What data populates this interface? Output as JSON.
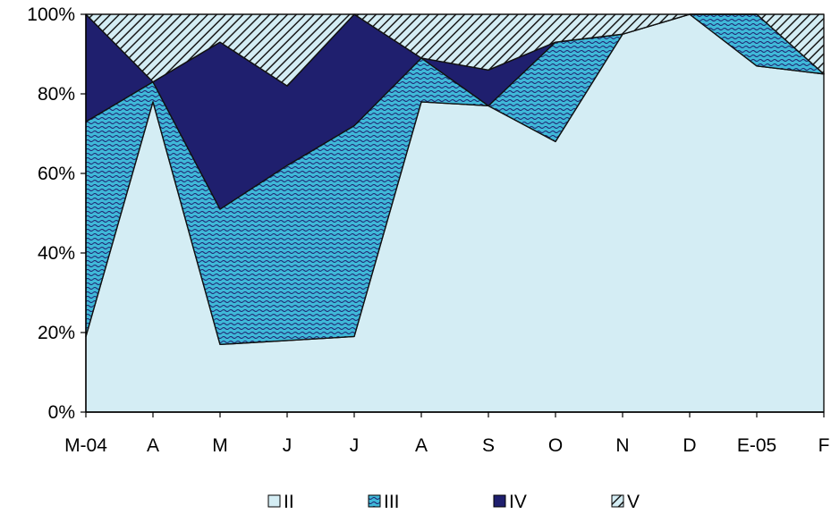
{
  "chart_data": {
    "type": "area",
    "stacked": "percent",
    "categories": [
      "M-04",
      "A",
      "M",
      "J",
      "J",
      "A",
      "S",
      "O",
      "N",
      "D",
      "E-05",
      "F"
    ],
    "series": [
      {
        "name": "II",
        "values": [
          19,
          78,
          17,
          18,
          19,
          78,
          77,
          68,
          95,
          100,
          87,
          85
        ],
        "fill": "#d4edf4",
        "pattern": "solid"
      },
      {
        "name": "III",
        "values": [
          54,
          5,
          34,
          44,
          53,
          11,
          0,
          25,
          0,
          0,
          13,
          0
        ],
        "fill": "#3fb8d8",
        "pattern": "wave"
      },
      {
        "name": "IV",
        "values": [
          27,
          0,
          42,
          20,
          28,
          0,
          9,
          0,
          0,
          0,
          0,
          0
        ],
        "fill": "#1f1f6e",
        "pattern": "solid"
      },
      {
        "name": "V",
        "values": [
          0,
          17,
          7,
          18,
          0,
          11,
          14,
          7,
          5,
          0,
          0,
          15
        ],
        "fill": "#d4edf4",
        "pattern": "diagonal-hatch"
      }
    ],
    "y_ticks": [
      "0%",
      "20%",
      "40%",
      "60%",
      "80%",
      "100%"
    ],
    "ylim": [
      0,
      100
    ],
    "grid": false,
    "legend_position": "bottom"
  }
}
